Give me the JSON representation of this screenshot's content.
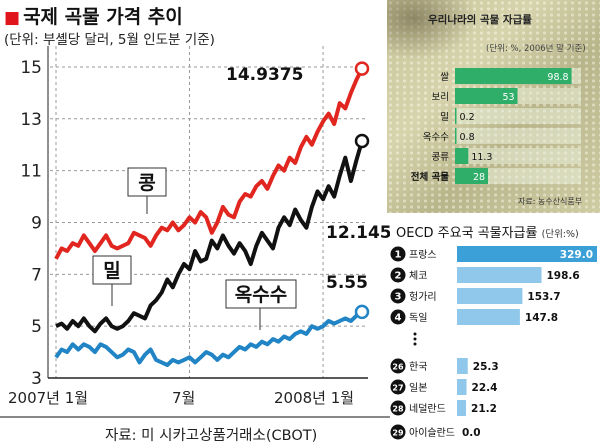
{
  "title": "국제 곡물 가격 추이",
  "subtitle": "(단위: 부셸당 달러, 5월 인도분 기준)",
  "source": "자료: 미 시카고상품거래소(CBOT)",
  "chart_data": [
    {
      "type": "line",
      "title": "국제 곡물 가격 추이",
      "unit": "부셸당 달러",
      "ylim": [
        3,
        15.5
      ],
      "yticks": [
        3,
        5,
        7,
        9,
        11,
        13,
        15
      ],
      "xticks": [
        "2007년 1월",
        "7월",
        "2008년 1월"
      ],
      "grid": true,
      "series": [
        {
          "name": "콩",
          "color": "#e0261f",
          "end_label": "14.9375",
          "values": [
            7.6,
            8.0,
            7.9,
            8.2,
            8.1,
            8.5,
            8.2,
            7.9,
            8.2,
            8.5,
            8.1,
            8.0,
            8.1,
            8.2,
            8.6,
            8.5,
            8.4,
            8.1,
            8.5,
            8.8,
            8.7,
            9.0,
            8.7,
            8.9,
            9.2,
            9.0,
            9.4,
            9.2,
            8.6,
            9.0,
            9.6,
            9.3,
            9.2,
            9.8,
            10.1,
            10.0,
            10.4,
            10.6,
            10.3,
            10.8,
            11.2,
            11.0,
            11.5,
            11.3,
            11.9,
            12.3,
            12.0,
            12.5,
            12.9,
            13.2,
            12.8,
            13.6,
            13.4,
            14.0,
            14.5,
            14.9375
          ]
        },
        {
          "name": "밀",
          "color": "#111111",
          "end_label": "12.145",
          "values": [
            5.0,
            5.1,
            4.9,
            5.2,
            5.0,
            5.3,
            5.0,
            4.8,
            5.1,
            5.3,
            5.0,
            4.9,
            5.0,
            5.2,
            5.5,
            5.4,
            5.3,
            5.8,
            6.0,
            6.3,
            6.8,
            6.5,
            7.0,
            7.4,
            7.2,
            7.9,
            7.5,
            7.6,
            8.3,
            8.0,
            8.5,
            8.1,
            7.8,
            8.2,
            7.9,
            7.4,
            8.1,
            8.6,
            8.3,
            8.0,
            8.8,
            9.2,
            8.9,
            9.5,
            9.1,
            8.8,
            9.6,
            10.2,
            9.9,
            10.4,
            10.0,
            10.8,
            11.5,
            10.6,
            11.4,
            12.145
          ]
        },
        {
          "name": "옥수수",
          "color": "#2185c5",
          "end_label": "5.55",
          "values": [
            3.8,
            4.1,
            4.0,
            4.3,
            4.1,
            4.3,
            4.2,
            4.0,
            4.3,
            4.2,
            4.0,
            3.8,
            3.9,
            4.1,
            4.0,
            3.6,
            3.9,
            4.1,
            3.7,
            3.6,
            3.5,
            3.7,
            3.6,
            3.7,
            3.8,
            3.6,
            3.8,
            4.0,
            3.9,
            3.7,
            3.9,
            3.8,
            4.0,
            4.2,
            4.1,
            4.3,
            4.2,
            4.4,
            4.3,
            4.5,
            4.4,
            4.6,
            4.5,
            4.7,
            4.8,
            4.7,
            5.0,
            4.9,
            5.0,
            5.2,
            5.1,
            5.2,
            5.3,
            5.2,
            5.4,
            5.55
          ]
        }
      ]
    },
    {
      "type": "bar",
      "title": "우리나라의 곡물 자급률",
      "subtitle": "(단위: %, 2006년 말 기준)",
      "source": "자료: 농수산식품부",
      "categories": [
        "쌀",
        "보리",
        "밀",
        "옥수수",
        "콩류",
        "전체 곡물"
      ],
      "value_labels": [
        "98.8",
        "53",
        "0.2",
        "0.8",
        "11.3",
        "28"
      ],
      "values": [
        98.8,
        53,
        0.2,
        0.8,
        11.3,
        28
      ],
      "colors": {
        "bar": "#2fae6a",
        "bar_dark": "#128a4b"
      }
    },
    {
      "type": "bar",
      "title": "OECD 주요국 곡물자급률",
      "unit_label": "(단위:%)",
      "ranks": [
        "1",
        "2",
        "3",
        "4",
        "26",
        "27",
        "28",
        "29"
      ],
      "categories": [
        "프랑스",
        "체코",
        "헝가리",
        "독일",
        "한국",
        "일본",
        "네덜란드",
        "아이슬란드"
      ],
      "value_labels": [
        "329.0",
        "198.6",
        "153.7",
        "147.8",
        "25.3",
        "22.4",
        "21.2",
        "0.0"
      ],
      "values": [
        329.0,
        198.6,
        153.7,
        147.8,
        25.3,
        22.4,
        21.2,
        0.0
      ],
      "colors": {
        "bar": "#8fc8ea",
        "bar_top": "#3b9fd8"
      }
    }
  ]
}
